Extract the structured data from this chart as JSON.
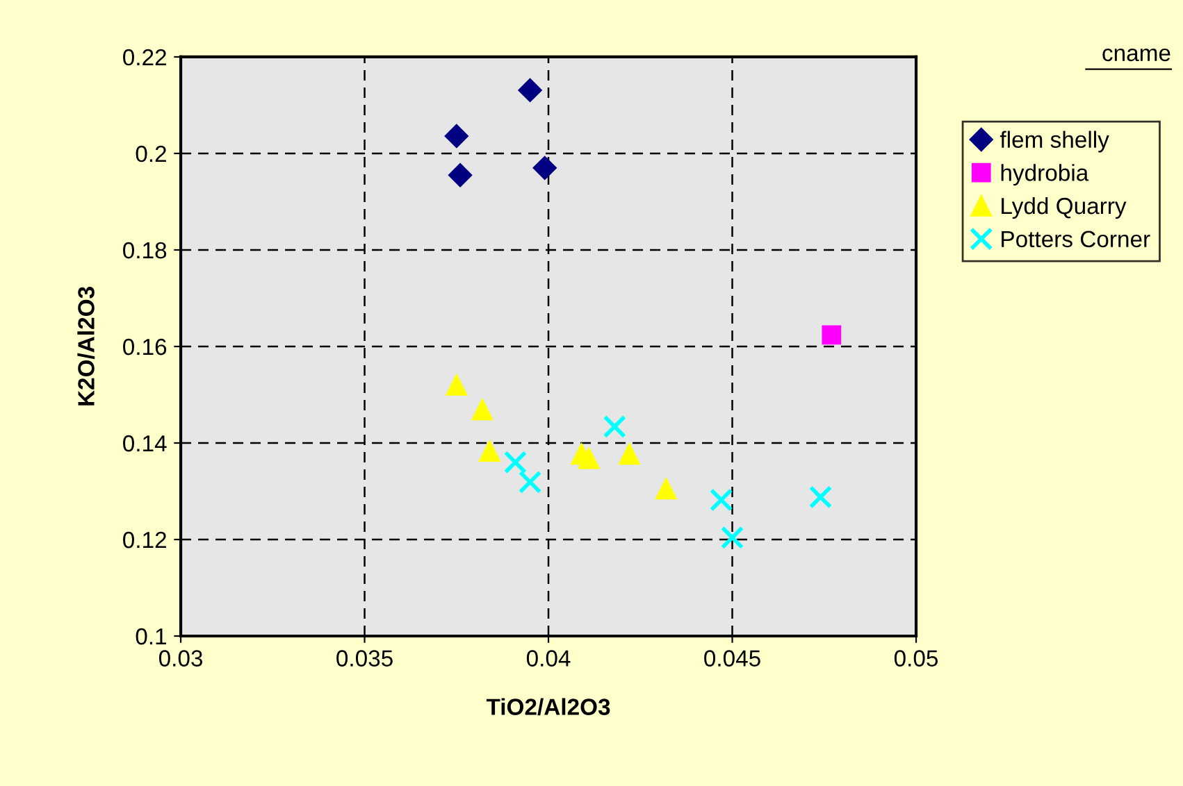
{
  "chart_data": {
    "type": "scatter",
    "xlabel": "TiO2/Al2O3",
    "ylabel": "K2O/Al2O3",
    "legend_title": "cname",
    "legend": "right",
    "xlim": [
      0.03,
      0.05
    ],
    "xticks": [
      0.03,
      0.035,
      0.04,
      0.045,
      0.05
    ],
    "ylim": [
      0.1,
      0.22
    ],
    "yticks": [
      0.1,
      0.12,
      0.14,
      0.16,
      0.18,
      0.2,
      0.22
    ],
    "grid": true,
    "series": [
      {
        "name": "flem shelly",
        "color": "#000080",
        "marker": "diamond",
        "x": [
          0.0375,
          0.0395,
          0.0376,
          0.0399
        ],
        "values": [
          0.2036,
          0.2131,
          0.1955,
          0.197
        ]
      },
      {
        "name": "hydrobia",
        "color": "#ff00ff",
        "marker": "square",
        "x": [
          0.0477
        ],
        "values": [
          0.1624
        ]
      },
      {
        "name": "Lydd Quarry",
        "color": "#ffff00",
        "marker": "triangle",
        "x": [
          0.0375,
          0.0382,
          0.0384,
          0.0409,
          0.0411,
          0.0422,
          0.0432
        ],
        "values": [
          0.152,
          0.1469,
          0.1383,
          0.1377,
          0.1368,
          0.1377,
          0.1305
        ]
      },
      {
        "name": "Potters Corner",
        "color": "#00ffff",
        "marker": "cross",
        "x": [
          0.0391,
          0.0395,
          0.0418,
          0.0447,
          0.045,
          0.0474
        ],
        "values": [
          0.136,
          0.1319,
          0.1434,
          0.1282,
          0.1204,
          0.1288
        ]
      }
    ]
  }
}
